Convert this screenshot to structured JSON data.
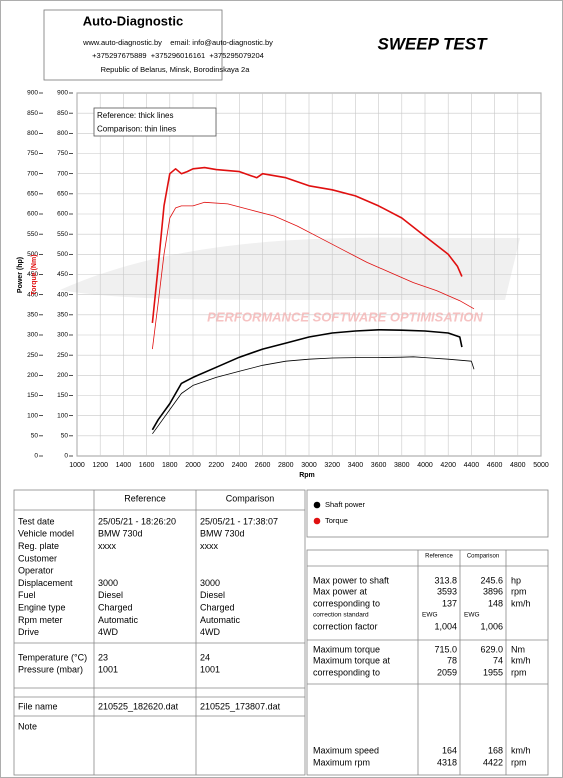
{
  "header": {
    "company": "Auto-Diagnostic",
    "lines": [
      "www.auto-diagnostic.by    email: info@auto-diagnostic.by",
      "+375297675889  +375296016161  +375295079204",
      "Republic of Belarus, Minsk, Borodinskaya 2a"
    ],
    "report_title": "SWEEP TEST"
  },
  "chart_data": {
    "type": "line",
    "x_label": "Rpm",
    "y_label": "Power (hp)",
    "y2_label": "Torque (Nm)",
    "annotations": [
      "Reference: thick lines",
      "Comparison: thin lines"
    ],
    "watermark": "PERFORMANCE SOFTWARE OPTIMISATION",
    "xlim": [
      1000,
      5000
    ],
    "xticks": [
      1000,
      1200,
      1400,
      1600,
      1800,
      2000,
      2200,
      2400,
      2600,
      2800,
      3000,
      3200,
      3400,
      3600,
      3800,
      4000,
      4200,
      4400,
      4600,
      4800,
      5000
    ],
    "ylim": [
      0,
      900
    ],
    "yticks": [
      0,
      50,
      100,
      150,
      200,
      250,
      300,
      350,
      400,
      450,
      500,
      550,
      600,
      650,
      700,
      750,
      800,
      850,
      900
    ],
    "y2lim": [
      0,
      900
    ],
    "y2ticks": [
      0,
      50,
      100,
      150,
      200,
      250,
      300,
      350,
      400,
      450,
      500,
      550,
      600,
      650,
      700,
      750,
      800,
      850,
      900
    ],
    "y2_color": "#e01010",
    "grid": true,
    "legend": [
      {
        "name": "Shaft power",
        "color": "#000000"
      },
      {
        "name": "Torque",
        "color": "#e01010"
      }
    ],
    "series": [
      {
        "color": "#000000",
        "width": 1.6,
        "x": [
          1650,
          1700,
          1800,
          1900,
          2000,
          2200,
          2400,
          2600,
          2800,
          3000,
          3200,
          3400,
          3600,
          3800,
          4000,
          4200,
          4300,
          4318
        ],
        "values": [
          65,
          90,
          130,
          180,
          195,
          220,
          245,
          265,
          280,
          295,
          305,
          310,
          313,
          312,
          310,
          305,
          295,
          270
        ]
      },
      {
        "color": "#000000",
        "width": 0.8,
        "x": [
          1650,
          1700,
          1800,
          1900,
          2000,
          2200,
          2400,
          2600,
          2800,
          3000,
          3200,
          3400,
          3600,
          3800,
          3900,
          4000,
          4200,
          4400,
          4422
        ],
        "values": [
          55,
          75,
          115,
          155,
          175,
          195,
          210,
          225,
          235,
          240,
          243,
          244,
          244,
          245,
          246,
          244,
          240,
          235,
          215
        ]
      },
      {
        "color": "#e01010",
        "width": 1.6,
        "axis": "y2",
        "x": [
          1650,
          1700,
          1750,
          1800,
          1850,
          1900,
          1950,
          2000,
          2100,
          2200,
          2400,
          2500,
          2550,
          2600,
          2800,
          3000,
          3200,
          3400,
          3600,
          3800,
          4000,
          4200,
          4280,
          4318
        ],
        "values": [
          330,
          470,
          620,
          700,
          712,
          700,
          705,
          712,
          715,
          710,
          705,
          695,
          690,
          700,
          690,
          670,
          660,
          645,
          620,
          590,
          545,
          500,
          470,
          445
        ]
      },
      {
        "color": "#e01010",
        "width": 0.8,
        "axis": "y2",
        "x": [
          1650,
          1700,
          1750,
          1800,
          1850,
          1900,
          2000,
          2100,
          2300,
          2500,
          2700,
          2900,
          3100,
          3300,
          3500,
          3700,
          3900,
          4100,
          4300,
          4422
        ],
        "values": [
          265,
          380,
          500,
          590,
          615,
          620,
          620,
          629,
          625,
          610,
          595,
          570,
          540,
          510,
          480,
          455,
          430,
          410,
          385,
          365
        ]
      }
    ]
  },
  "vehicle_table": {
    "headers": [
      "Reference",
      "Comparison"
    ],
    "sections": [
      [
        {
          "label": "Test date",
          "reference": "25/05/21 - 18:26:20",
          "comparison": "25/05/21 - 17:38:07"
        },
        {
          "label": "Vehicle model",
          "reference": "BMW 730d",
          "comparison": "BMW 730d"
        },
        {
          "label": "Reg. plate",
          "reference": "xxxx",
          "comparison": "xxxx"
        },
        {
          "label": "Customer"
        },
        {
          "label": "Operator"
        },
        {
          "label": "Displacement",
          "reference": "3000",
          "comparison": "3000"
        },
        {
          "label": "Fuel",
          "reference": "Diesel",
          "comparison": "Diesel"
        },
        {
          "label": "Engine type",
          "reference": "Charged",
          "comparison": "Charged"
        },
        {
          "label": "Rpm meter",
          "reference": "Automatic",
          "comparison": "Automatic"
        },
        {
          "label": "Drive",
          "reference": "4WD",
          "comparison": "4WD"
        }
      ],
      [
        {
          "label": "Temperature (°C)",
          "reference": "23",
          "comparison": "24"
        },
        {
          "label": "Pressure (mbar)",
          "reference": "1001",
          "comparison": "1001"
        }
      ],
      [
        {
          "label": "File name",
          "reference": "210525_182620.dat",
          "comparison": "210525_173807.dat"
        }
      ],
      [
        {
          "label": "Note"
        }
      ]
    ]
  },
  "results_table": {
    "headers": [
      "Reference",
      "Comparison"
    ],
    "rows": [
      {
        "label": "Max power to shaft",
        "reference": "313.8",
        "comparison": "245.6",
        "unit": "hp"
      },
      {
        "label": "Max power at",
        "reference": "3593",
        "comparison": "3896",
        "unit": "rpm"
      },
      {
        "label": "corresponding to",
        "reference": "137",
        "comparison": "148",
        "unit": "km/h"
      },
      {
        "label": "correction standard",
        "reference": "EWG",
        "comparison": "EWG"
      },
      {
        "label": "correction factor",
        "reference": "1,004",
        "comparison": "1,006"
      },
      {
        "label": "Maximum torque",
        "reference": "715.0",
        "comparison": "629.0",
        "unit": "Nm"
      },
      {
        "label": "Maximum torque at",
        "reference": "78",
        "comparison": "74",
        "unit": "km/h"
      },
      {
        "label": "corresponding to",
        "reference": "2059",
        "comparison": "1955",
        "unit": "rpm"
      },
      {
        "label": "Maximum speed",
        "reference": "164",
        "comparison": "168",
        "unit": "km/h"
      },
      {
        "label": "Maximum rpm",
        "reference": "4318",
        "comparison": "4422",
        "unit": "rpm"
      }
    ]
  }
}
